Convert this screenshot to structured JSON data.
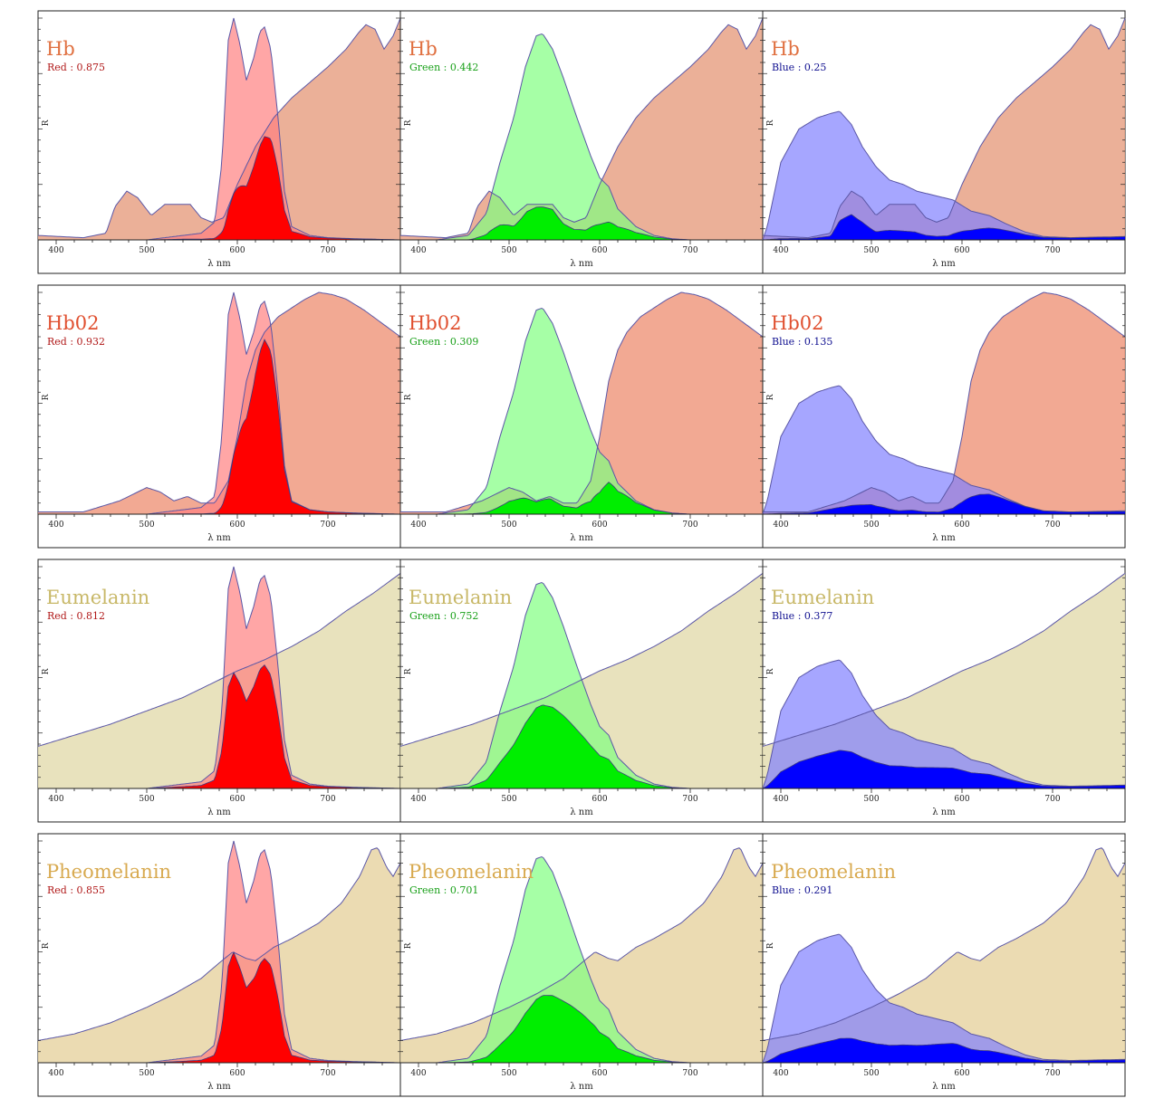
{
  "chart_data": {
    "type": "area",
    "layout": "grid-4x3",
    "xlabel": "λ   nm",
    "ylabel": "R",
    "xlim": [
      380,
      780
    ],
    "ylim": [
      0,
      1
    ],
    "xticks": [
      400,
      500,
      600,
      700
    ],
    "channels": {
      "red": {
        "label": "Red",
        "color": "#ff0000",
        "band_fill": "#ff8080",
        "text_color": "#b01818",
        "band": [
          [
            380,
            0
          ],
          [
            500,
            0
          ],
          [
            540,
            0.02
          ],
          [
            560,
            0.03
          ],
          [
            575,
            0.08
          ],
          [
            583,
            0.35
          ],
          [
            590,
            0.9
          ],
          [
            596,
            1.0
          ],
          [
            603,
            0.88
          ],
          [
            610,
            0.72
          ],
          [
            618,
            0.82
          ],
          [
            625,
            0.94
          ],
          [
            630,
            0.96
          ],
          [
            637,
            0.86
          ],
          [
            645,
            0.55
          ],
          [
            652,
            0.22
          ],
          [
            660,
            0.06
          ],
          [
            680,
            0.02
          ],
          [
            700,
            0.01
          ],
          [
            730,
            0.005
          ],
          [
            780,
            0
          ]
        ]
      },
      "green": {
        "label": "Green",
        "color": "#00ee00",
        "band_fill": "#80ff80",
        "text_color": "#18a018",
        "band": [
          [
            380,
            0
          ],
          [
            420,
            0
          ],
          [
            455,
            0.02
          ],
          [
            475,
            0.12
          ],
          [
            490,
            0.35
          ],
          [
            505,
            0.55
          ],
          [
            518,
            0.78
          ],
          [
            530,
            0.92
          ],
          [
            537,
            0.93
          ],
          [
            548,
            0.86
          ],
          [
            560,
            0.73
          ],
          [
            575,
            0.55
          ],
          [
            590,
            0.38
          ],
          [
            600,
            0.28
          ],
          [
            610,
            0.24
          ],
          [
            620,
            0.14
          ],
          [
            640,
            0.06
          ],
          [
            660,
            0.02
          ],
          [
            680,
            0.005
          ],
          [
            700,
            0
          ],
          [
            780,
            0
          ]
        ]
      },
      "blue": {
        "label": "Blue",
        "color": "#0000ff",
        "band_fill": "#8080ff",
        "text_color": "#101090",
        "band": [
          [
            380,
            0
          ],
          [
            385,
            0.06
          ],
          [
            400,
            0.35
          ],
          [
            420,
            0.5
          ],
          [
            440,
            0.55
          ],
          [
            455,
            0.57
          ],
          [
            465,
            0.58
          ],
          [
            478,
            0.52
          ],
          [
            490,
            0.42
          ],
          [
            505,
            0.33
          ],
          [
            520,
            0.27
          ],
          [
            535,
            0.25
          ],
          [
            550,
            0.22
          ],
          [
            570,
            0.2
          ],
          [
            590,
            0.18
          ],
          [
            610,
            0.13
          ],
          [
            630,
            0.11
          ],
          [
            650,
            0.07
          ],
          [
            670,
            0.035
          ],
          [
            690,
            0.015
          ],
          [
            720,
            0.01
          ],
          [
            780,
            0.015
          ]
        ]
      }
    },
    "pigments": [
      {
        "name": "Hb",
        "color": "#e07040",
        "fill": "#e8a286",
        "reflectance": [
          [
            380,
            0.02
          ],
          [
            430,
            0.01
          ],
          [
            455,
            0.03
          ],
          [
            465,
            0.15
          ],
          [
            478,
            0.22
          ],
          [
            490,
            0.19
          ],
          [
            505,
            0.11
          ],
          [
            520,
            0.16
          ],
          [
            535,
            0.16
          ],
          [
            548,
            0.16
          ],
          [
            560,
            0.1
          ],
          [
            572,
            0.08
          ],
          [
            585,
            0.1
          ],
          [
            600,
            0.25
          ],
          [
            620,
            0.42
          ],
          [
            640,
            0.55
          ],
          [
            660,
            0.64
          ],
          [
            680,
            0.71
          ],
          [
            700,
            0.78
          ],
          [
            720,
            0.86
          ],
          [
            735,
            0.94
          ],
          [
            742,
            0.97
          ],
          [
            752,
            0.95
          ],
          [
            762,
            0.86
          ],
          [
            772,
            0.92
          ],
          [
            780,
            1.0
          ]
        ],
        "scores": {
          "red": "0.875",
          "green": "0.442",
          "blue": "0.25"
        }
      },
      {
        "name": "Hb02",
        "color": "#e05030",
        "fill": "#f09a80",
        "reflectance": [
          [
            380,
            0.01
          ],
          [
            430,
            0.01
          ],
          [
            470,
            0.06
          ],
          [
            500,
            0.12
          ],
          [
            515,
            0.1
          ],
          [
            530,
            0.06
          ],
          [
            545,
            0.08
          ],
          [
            560,
            0.05
          ],
          [
            575,
            0.05
          ],
          [
            590,
            0.15
          ],
          [
            600,
            0.35
          ],
          [
            610,
            0.6
          ],
          [
            620,
            0.74
          ],
          [
            630,
            0.82
          ],
          [
            645,
            0.89
          ],
          [
            660,
            0.93
          ],
          [
            675,
            0.97
          ],
          [
            690,
            1.0
          ],
          [
            705,
            0.99
          ],
          [
            720,
            0.97
          ],
          [
            740,
            0.92
          ],
          [
            760,
            0.86
          ],
          [
            780,
            0.8
          ]
        ],
        "scores": {
          "red": "0.932",
          "green": "0.309",
          "blue": "0.135"
        }
      },
      {
        "name": "Eumelanin",
        "color": "#c8b868",
        "fill": "#e4ddb2",
        "reflectance": [
          [
            380,
            0.19
          ],
          [
            420,
            0.24
          ],
          [
            460,
            0.29
          ],
          [
            500,
            0.35
          ],
          [
            540,
            0.41
          ],
          [
            570,
            0.47
          ],
          [
            600,
            0.53
          ],
          [
            630,
            0.58
          ],
          [
            660,
            0.64
          ],
          [
            690,
            0.71
          ],
          [
            720,
            0.8
          ],
          [
            750,
            0.88
          ],
          [
            780,
            0.97
          ]
        ],
        "scores": {
          "red": "0.812",
          "green": "0.752",
          "blue": "0.377"
        }
      },
      {
        "name": "Pheomelanin",
        "color": "#d8aa50",
        "fill": "#e8d5a4",
        "reflectance": [
          [
            380,
            0.1
          ],
          [
            420,
            0.13
          ],
          [
            460,
            0.18
          ],
          [
            500,
            0.25
          ],
          [
            530,
            0.31
          ],
          [
            560,
            0.38
          ],
          [
            580,
            0.45
          ],
          [
            595,
            0.5
          ],
          [
            610,
            0.47
          ],
          [
            620,
            0.46
          ],
          [
            640,
            0.52
          ],
          [
            660,
            0.56
          ],
          [
            690,
            0.63
          ],
          [
            715,
            0.72
          ],
          [
            735,
            0.84
          ],
          [
            748,
            0.96
          ],
          [
            755,
            0.97
          ],
          [
            765,
            0.88
          ],
          [
            772,
            0.84
          ],
          [
            780,
            0.9
          ]
        ],
        "scores": {
          "red": "0.855",
          "green": "0.701",
          "blue": "0.291"
        }
      }
    ]
  }
}
